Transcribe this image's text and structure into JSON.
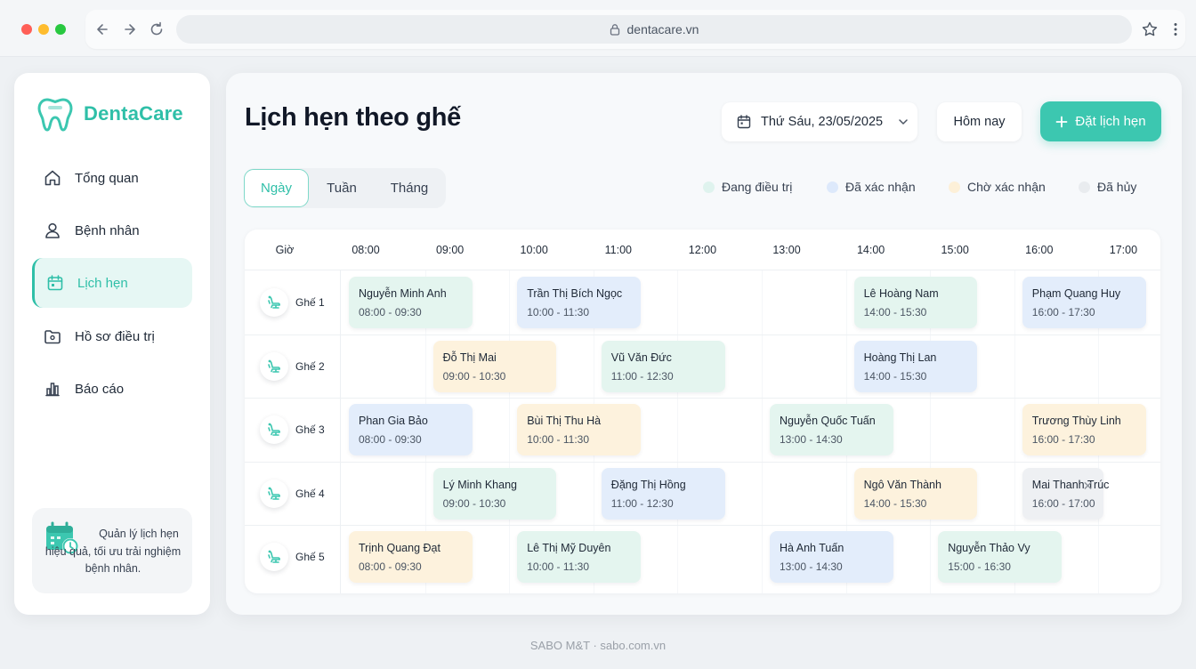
{
  "browser": {
    "url": "dentacare.vn",
    "colors": {
      "close": "#ff5f57",
      "minimize": "#febc2e",
      "maximize": "#28c840"
    }
  },
  "sidebar": {
    "brand": "DentaCare",
    "items": [
      {
        "label": "Tổng quan",
        "icon": "home-icon"
      },
      {
        "label": "Bệnh nhân",
        "icon": "user-icon"
      },
      {
        "label": "Lịch hẹn",
        "icon": "calendar-icon",
        "active": true
      },
      {
        "label": "Hồ sơ điều trị",
        "icon": "folder-icon"
      },
      {
        "label": "Báo cáo",
        "icon": "bar-chart-icon"
      }
    ],
    "promo": "Quản lý lịch hẹn hiệu quả, tối ưu trải nghiệm bệnh nhân."
  },
  "header": {
    "title": "Lịch hẹn theo ghế",
    "date": "Thứ Sáu, 23/05/2025",
    "today_label": "Hôm nay",
    "book_label": "Đặt lịch hẹn"
  },
  "view_tabs": [
    "Ngày",
    "Tuần",
    "Tháng"
  ],
  "active_view": "Ngày",
  "legend": [
    {
      "label": "Đang điều trị",
      "color": "#dff3ee"
    },
    {
      "label": "Đã xác nhận",
      "color": "#dde9fb"
    },
    {
      "label": "Chờ xác nhận",
      "color": "#fdf0d8"
    },
    {
      "label": "Đã hủy",
      "color": "#e9ecef"
    }
  ],
  "schedule": {
    "hour_header": "Giờ",
    "hours": [
      "08:00",
      "09:00",
      "10:00",
      "11:00",
      "12:00",
      "13:00",
      "14:00",
      "15:00",
      "16:00",
      "17:00"
    ],
    "chairs": [
      {
        "label": "Ghế 1",
        "appointments": [
          {
            "name": "Nguyễn Minh Anh",
            "time": "08:00 - 09:30",
            "status": "treat"
          },
          {
            "name": "Trần Thị Bích Ngọc",
            "time": "10:00 - 11:30",
            "status": "conf"
          },
          {
            "name": "Lê Hoàng Nam",
            "time": "14:00 - 15:30",
            "status": "treat"
          },
          {
            "name": "Phạm Quang Huy",
            "time": "16:00 - 17:30",
            "status": "conf"
          }
        ]
      },
      {
        "label": "Ghế 2",
        "appointments": [
          {
            "name": "Đỗ Thị Mai",
            "time": "09:00 - 10:30",
            "status": "pend"
          },
          {
            "name": "Vũ Văn Đức",
            "time": "11:00 - 12:30",
            "status": "treat"
          },
          {
            "name": "Hoàng Thị Lan",
            "time": "14:00 - 15:30",
            "status": "conf"
          }
        ]
      },
      {
        "label": "Ghế 3",
        "appointments": [
          {
            "name": "Phan Gia Bảo",
            "time": "08:00 - 09:30",
            "status": "conf"
          },
          {
            "name": "Bùi Thị Thu Hà",
            "time": "10:00 - 11:30",
            "status": "pend"
          },
          {
            "name": "Nguyễn Quốc Tuấn",
            "time": "13:00 - 14:30",
            "status": "treat"
          },
          {
            "name": "Trương Thùy Linh",
            "time": "16:00 - 17:30",
            "status": "pend"
          }
        ]
      },
      {
        "label": "Ghế 4",
        "appointments": [
          {
            "name": "Lý Minh Khang",
            "time": "09:00 - 10:30",
            "status": "treat"
          },
          {
            "name": "Đặng Thị Hồng",
            "time": "11:00 - 12:30",
            "status": "conf"
          },
          {
            "name": "Ngô Văn Thành",
            "time": "14:00 - 15:30",
            "status": "pend"
          },
          {
            "name": "Mai Thanh Trúc",
            "time": "16:00 - 17:00",
            "status": "cancel"
          }
        ]
      },
      {
        "label": "Ghế 5",
        "appointments": [
          {
            "name": "Trịnh Quang Đạt",
            "time": "08:00 - 09:30",
            "status": "pend"
          },
          {
            "name": "Lê Thị Mỹ Duyên",
            "time": "10:00 - 11:30",
            "status": "treat"
          },
          {
            "name": "Hà Anh Tuấn",
            "time": "13:00 - 14:30",
            "status": "conf"
          },
          {
            "name": "Nguyễn Thảo Vy",
            "time": "15:00 - 16:30",
            "status": "treat"
          }
        ]
      }
    ]
  },
  "footer": "SABO M&T · sabo.com.vn",
  "accent_color": "#3cc7b0"
}
